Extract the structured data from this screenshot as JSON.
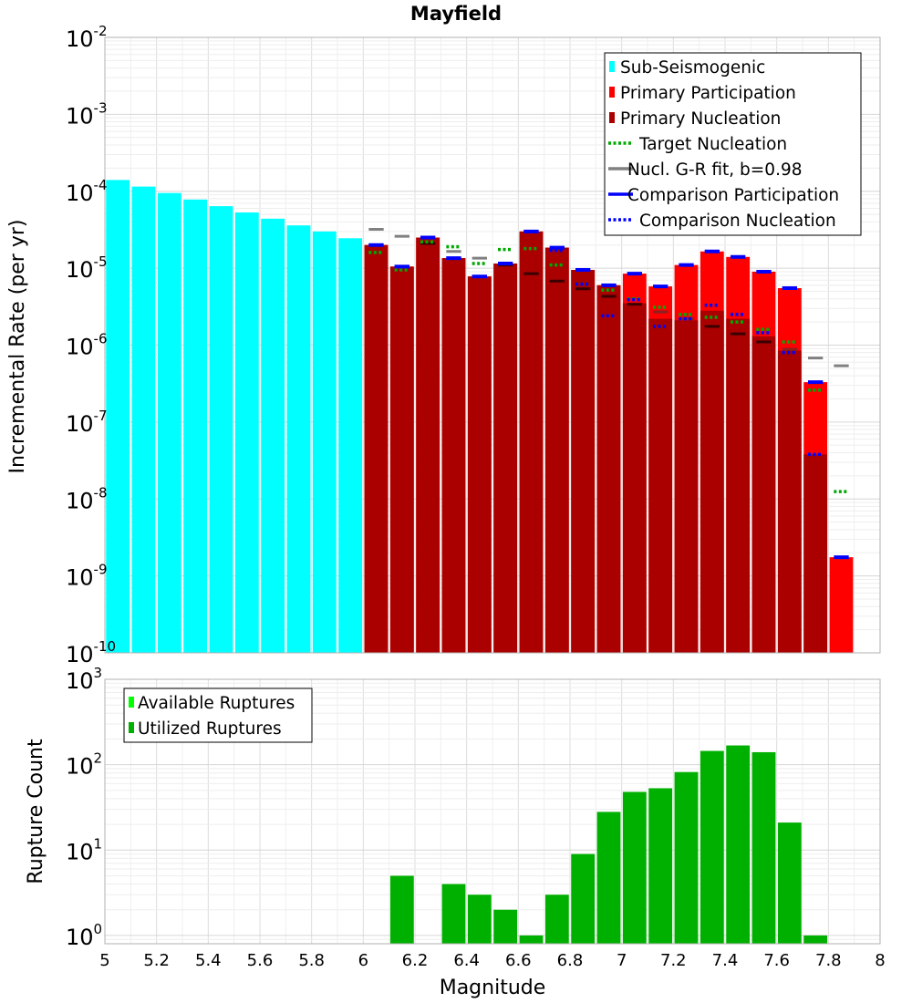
{
  "chart_data": [
    {
      "type": "bar",
      "title": "Mayfield",
      "xlabel": "",
      "ylabel": "Incremental Rate (per yr)",
      "yscale": "log",
      "xlim": [
        5,
        8
      ],
      "ylim": [
        1e-10,
        0.01
      ],
      "bin_width": 0.1,
      "ytick_labels": [
        {
          "base": "10",
          "exp": "-10",
          "value": 1e-10
        },
        {
          "base": "10",
          "exp": "-9",
          "value": 1e-09
        },
        {
          "base": "10",
          "exp": "-8",
          "value": 1e-08
        },
        {
          "base": "10",
          "exp": "-7",
          "value": 1e-07
        },
        {
          "base": "10",
          "exp": "-6",
          "value": 1e-06
        },
        {
          "base": "10",
          "exp": "-5",
          "value": 1e-05
        },
        {
          "base": "10",
          "exp": "-4",
          "value": 0.0001
        },
        {
          "base": "10",
          "exp": "-3",
          "value": 0.001
        },
        {
          "base": "10",
          "exp": "-2",
          "value": 0.01
        }
      ],
      "legend": {
        "position": "top-right",
        "entries": [
          {
            "label": "Sub-Seismogenic",
            "color": "#00ffff",
            "style": "bar"
          },
          {
            "label": "Primary Participation",
            "color": "#ff0000",
            "style": "bar"
          },
          {
            "label": "Primary Nucleation",
            "color": "#aa0000",
            "style": "bar"
          },
          {
            "label": "Target Nucleation",
            "color": "#00aa00",
            "style": "dotted"
          },
          {
            "label": "Nucl. G-R fit, b=0.98",
            "color": "#808080",
            "style": "solid"
          },
          {
            "label": "Comparison Participation",
            "color": "#0000ff",
            "style": "solid"
          },
          {
            "label": "Comparison Nucleation",
            "color": "#0000ff",
            "style": "dotted"
          }
        ]
      },
      "series": [
        {
          "name": "Sub-Seismogenic",
          "color": "#00ffff",
          "style": "bar",
          "x": [
            5.05,
            5.15,
            5.25,
            5.35,
            5.45,
            5.55,
            5.65,
            5.75,
            5.85,
            5.95
          ],
          "values": [
            0.00014,
            0.000115,
            9.5e-05,
            7.8e-05,
            6.4e-05,
            5.3e-05,
            4.4e-05,
            3.6e-05,
            3e-05,
            2.45e-05
          ]
        },
        {
          "name": "Primary Participation",
          "color": "#ff0000",
          "style": "bar",
          "x": [
            6.05,
            6.15,
            6.25,
            6.35,
            6.45,
            6.55,
            6.65,
            6.75,
            6.85,
            6.95,
            7.05,
            7.15,
            7.25,
            7.35,
            7.45,
            7.55,
            7.65,
            7.75,
            7.85
          ],
          "values": [
            2e-05,
            1.05e-05,
            2.5e-05,
            1.35e-05,
            7.8e-06,
            1.15e-05,
            3e-05,
            1.85e-05,
            9.5e-06,
            6e-06,
            8.5e-06,
            5.8e-06,
            1.1e-05,
            1.65e-05,
            1.4e-05,
            9e-06,
            5.5e-06,
            3.3e-07,
            1.75e-09
          ]
        },
        {
          "name": "Primary Nucleation",
          "color": "#aa0000",
          "style": "bar",
          "x": [
            6.05,
            6.15,
            6.25,
            6.35,
            6.45,
            6.55,
            6.65,
            6.75,
            6.85,
            6.95,
            7.05,
            7.15,
            7.25,
            7.35,
            7.45,
            7.55,
            7.65,
            7.75
          ],
          "values": [
            2e-05,
            1.05e-05,
            2.5e-05,
            1.35e-05,
            7.8e-06,
            1.15e-05,
            3e-05,
            1.85e-05,
            9.5e-06,
            6e-06,
            3.5e-06,
            2.2e-06,
            2.1e-06,
            2.8e-06,
            2.2e-06,
            1.3e-06,
            8.5e-07,
            3.8e-08
          ]
        },
        {
          "name": "Target Nucleation",
          "color": "#00aa00",
          "style": "dotted",
          "x": [
            6.05,
            6.15,
            6.25,
            6.35,
            6.45,
            6.55,
            6.65,
            6.75,
            6.85,
            6.95,
            7.05,
            7.15,
            7.25,
            7.35,
            7.45,
            7.55,
            7.65,
            7.75,
            7.85
          ],
          "values": [
            1.6e-05,
            9.5e-06,
            2.2e-05,
            1.9e-05,
            1.15e-05,
            1.75e-05,
            1.8e-05,
            1.1e-05,
            6.2e-06,
            5.2e-06,
            4e-06,
            3.1e-06,
            2.5e-06,
            2.3e-06,
            2e-06,
            1.6e-06,
            1.1e-06,
            2.6e-07,
            1.25e-08
          ]
        },
        {
          "name": "Nucl. G-R fit, b=0.98",
          "color": "#808080",
          "style": "solid",
          "x": [
            6.05,
            6.15,
            6.25,
            6.35,
            6.45,
            6.55,
            6.65,
            6.75,
            6.85,
            6.95,
            7.05,
            7.15,
            7.25,
            7.35,
            7.45,
            7.55,
            7.65,
            7.75,
            7.85
          ],
          "values": [
            3.2e-05,
            2.6e-05,
            2.1e-05,
            1.65e-05,
            1.35e-05,
            1.1e-05,
            8.5e-06,
            6.8e-06,
            5.4e-06,
            4.3e-06,
            3.4e-06,
            2.7e-06,
            2.2e-06,
            1.75e-06,
            1.4e-06,
            1.1e-06,
            8.8e-07,
            6.8e-07,
            5.4e-07
          ]
        },
        {
          "name": "Comparison Participation",
          "color": "#0000ff",
          "style": "solid",
          "x": [
            6.05,
            6.15,
            6.25,
            6.35,
            6.45,
            6.55,
            6.65,
            6.75,
            6.85,
            6.95,
            7.05,
            7.15,
            7.25,
            7.35,
            7.45,
            7.55,
            7.65,
            7.75,
            7.85
          ],
          "values": [
            2e-05,
            1.05e-05,
            2.5e-05,
            1.35e-05,
            7.8e-06,
            1.15e-05,
            3e-05,
            1.85e-05,
            9.5e-06,
            6e-06,
            8.5e-06,
            5.8e-06,
            1.1e-05,
            1.65e-05,
            1.4e-05,
            9e-06,
            5.5e-06,
            3.3e-07,
            1.75e-09
          ]
        },
        {
          "name": "Comparison Nucleation",
          "color": "#0000ff",
          "style": "dotted",
          "x": [
            6.05,
            6.15,
            6.25,
            6.35,
            6.45,
            6.55,
            6.65,
            6.75,
            6.85,
            6.95,
            7.05,
            7.15,
            7.25,
            7.35,
            7.45,
            7.55,
            7.65,
            7.75
          ],
          "values": [
            2e-05,
            1.05e-05,
            2.5e-05,
            1.35e-05,
            7.8e-06,
            1.15e-05,
            3e-05,
            1.7e-05,
            6.2e-06,
            2.4e-06,
            3.9e-06,
            1.75e-06,
            2.2e-06,
            3.3e-06,
            2.5e-06,
            1.45e-06,
            8e-07,
            3.8e-08
          ]
        }
      ]
    },
    {
      "type": "bar",
      "title": "",
      "xlabel": "Magnitude",
      "ylabel": "Rupture Count",
      "yscale": "log",
      "xlim": [
        5,
        8
      ],
      "ylim": [
        0.8,
        1000
      ],
      "bin_width": 0.1,
      "xtick_labels": [
        "5",
        "5.2",
        "5.4",
        "5.6",
        "5.8",
        "6",
        "6.2",
        "6.4",
        "6.6",
        "6.8",
        "7",
        "7.2",
        "7.4",
        "7.6",
        "7.8",
        "8"
      ],
      "ytick_labels": [
        {
          "base": "10",
          "exp": "0",
          "value": 1
        },
        {
          "base": "10",
          "exp": "1",
          "value": 10
        },
        {
          "base": "10",
          "exp": "2",
          "value": 100
        },
        {
          "base": "10",
          "exp": "3",
          "value": 1000
        }
      ],
      "legend": {
        "position": "top-left",
        "entries": [
          {
            "label": "Available Ruptures",
            "color": "#00ff00",
            "style": "bar"
          },
          {
            "label": "Utilized Ruptures",
            "color": "#00b000",
            "style": "bar"
          }
        ]
      },
      "series": [
        {
          "name": "Utilized Ruptures",
          "color": "#00b000",
          "style": "bar",
          "x": [
            6.15,
            6.35,
            6.45,
            6.55,
            6.65,
            6.75,
            6.85,
            6.95,
            7.05,
            7.15,
            7.25,
            7.35,
            7.45,
            7.55,
            7.65,
            7.75
          ],
          "values": [
            5,
            4,
            3,
            2,
            1,
            3,
            9,
            28,
            48,
            53,
            82,
            145,
            168,
            140,
            21,
            1
          ]
        }
      ]
    }
  ]
}
